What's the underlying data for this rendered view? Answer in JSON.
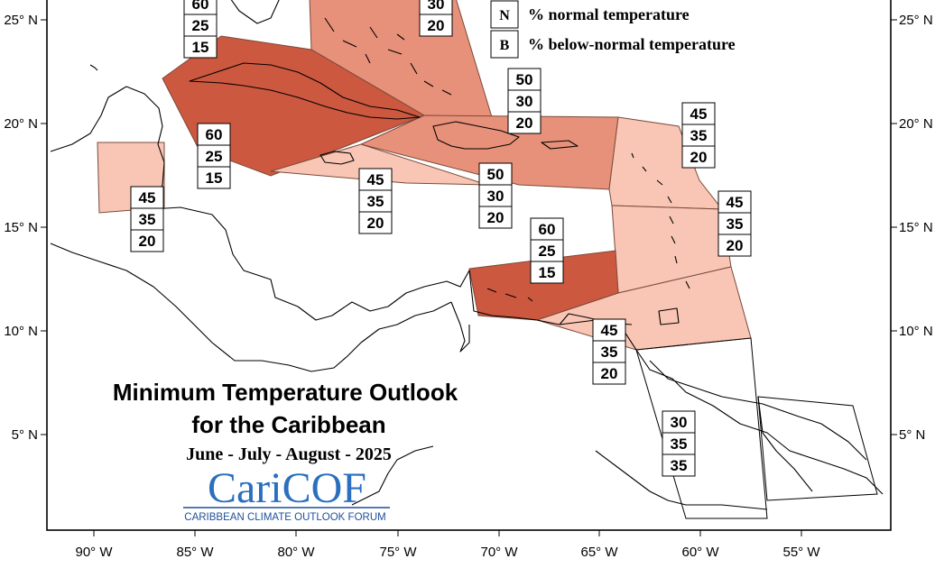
{
  "map": {
    "axis_labels": {
      "lon": [
        "90° W",
        "85° W",
        "80° W",
        "75° W",
        "70° W",
        "65° W",
        "60° W",
        "55° W"
      ],
      "lat": [
        "25° N",
        "20° N",
        "15° N",
        "10° N",
        "5° N"
      ]
    },
    "legend": {
      "items": [
        {
          "key": "N",
          "text": "% normal temperature"
        },
        {
          "key": "B",
          "text": "% below-normal temperature"
        }
      ]
    },
    "title": {
      "line1": "Minimum Temperature Outlook",
      "line2": "for the Caribbean",
      "period": "June - July - August - 2025"
    },
    "logo": {
      "name": "CariCOF",
      "tagline": "CARIBBEAN CLIMATE OUTLOOK FORUM"
    },
    "colors": {
      "strong": "#cc5840",
      "medium": "#e8917a",
      "light": "#f9c6b5",
      "logo_blue": "#2a6fc0"
    },
    "probability_boxes": [
      {
        "values": [
          "60",
          "25",
          "15"
        ]
      },
      {
        "values": [
          "30",
          "20"
        ]
      },
      {
        "values": [
          "50",
          "30",
          "20"
        ]
      },
      {
        "values": [
          "60",
          "25",
          "15"
        ]
      },
      {
        "values": [
          "45",
          "35",
          "20"
        ]
      },
      {
        "values": [
          "45",
          "35",
          "20"
        ]
      },
      {
        "values": [
          "50",
          "30",
          "20"
        ]
      },
      {
        "values": [
          "45",
          "35",
          "20"
        ]
      },
      {
        "values": [
          "45",
          "35",
          "20"
        ]
      },
      {
        "values": [
          "60",
          "25",
          "15"
        ]
      },
      {
        "values": [
          "45",
          "35",
          "20"
        ]
      },
      {
        "values": [
          "30",
          "35",
          "35"
        ]
      }
    ]
  }
}
